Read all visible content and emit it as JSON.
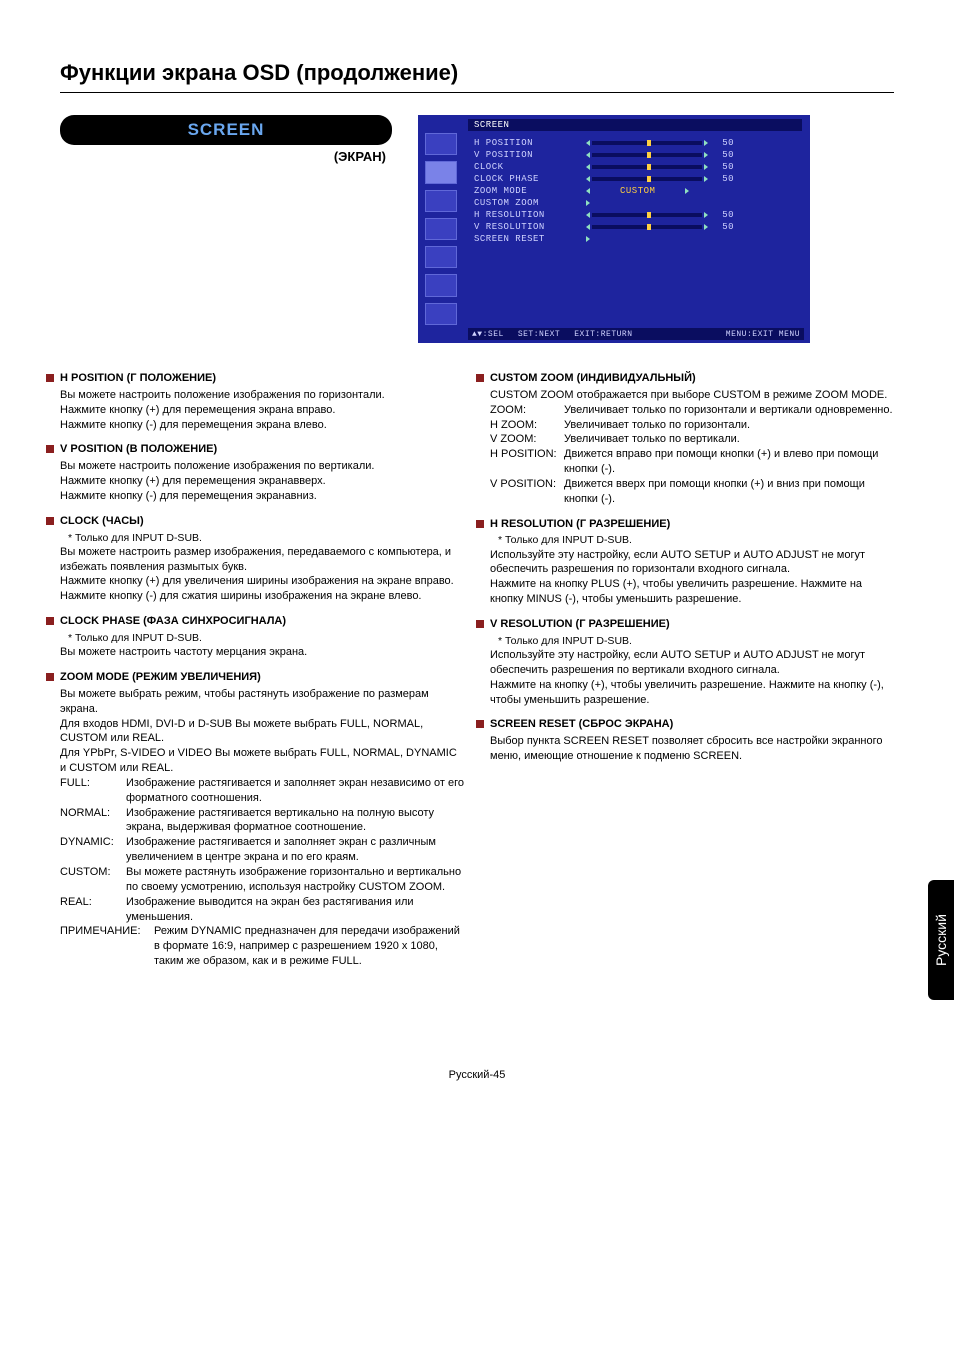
{
  "page": {
    "title": "Функции экрана OSD (продолжение)",
    "footer": "Русский-45",
    "side_tab": "Русский"
  },
  "header": {
    "pill": "SCREEN",
    "sub": "(ЭКРАН)"
  },
  "osd": {
    "title": "SCREEN",
    "items": [
      {
        "label": "H POSITION",
        "type": "slider",
        "value": "50"
      },
      {
        "label": "V POSITION",
        "type": "slider",
        "value": "50"
      },
      {
        "label": "CLOCK",
        "type": "slider",
        "value": "50"
      },
      {
        "label": "CLOCK PHASE",
        "type": "slider",
        "value": "50"
      },
      {
        "label": "ZOOM MODE",
        "type": "text",
        "text": "CUSTOM"
      },
      {
        "label": "CUSTOM ZOOM",
        "type": "arrow"
      },
      {
        "label": "H RESOLUTION",
        "type": "slider",
        "value": "50"
      },
      {
        "label": "V RESOLUTION",
        "type": "slider",
        "value": "50"
      },
      {
        "label": "SCREEN RESET",
        "type": "arrow"
      }
    ],
    "footer": {
      "sel": "▲▼:SEL",
      "next": "SET:NEXT",
      "return": "EXIT:RETURN",
      "exitmenu": "MENU:EXIT MENU"
    },
    "colors": {
      "bg": "#1e249e",
      "bar": "#0a0d60",
      "text": "#cfd2ff",
      "accent": "#ffd040",
      "tri": "#8fe0c0"
    }
  },
  "left": {
    "hpos": {
      "title": "H POSITION (Г ПОЛОЖЕНИЕ)",
      "p1": "Вы можете настроить положение изображения по горизонтали.",
      "p2": "Нажмите кнопку (+) для перемещения экрана вправо.",
      "p3": "Нажмите кнопку (-) для перемещения экрана влево."
    },
    "vpos": {
      "title": "V POSITION (В ПОЛОЖЕНИЕ)",
      "p1": "Вы можете настроить положение изображения по вертикали.",
      "p2": "Нажмите кнопку (+) для перемещения экранавверх.",
      "p3": "Нажмите кнопку (-) для перемещения экранавниз."
    },
    "clock": {
      "title": "CLOCK (ЧАСЫ)",
      "note": "* Только для INPUT D-SUB.",
      "p1": "Вы можете настроить размер изображения, передаваемого с компьютера, и избежать появления размытых букв.",
      "p2": "Нажмите кнопку (+) для увеличения ширины изображения на экране вправо. Нажмите кнопку (-) для сжатия ширины изображения на экране влево."
    },
    "phase": {
      "title": "CLOCK PHASE (ФАЗА СИНХРОСИГНАЛА)",
      "note": "* Только для INPUT D-SUB.",
      "p1": "Вы можете настроить частоту мерцания экрана."
    },
    "zoom": {
      "title": "ZOOM MODE (РЕЖИМ УВЕЛИЧЕНИЯ)",
      "p1": "Вы можете выбрать режим, чтобы растянуть изображение по размерам экрана.",
      "p2": "Для входов HDMI, DVI-D и D-SUB Вы можете выбрать FULL, NORMAL, CUSTOM или REAL.",
      "p3": "Для YPbPr, S-VIDEO и VIDEO Вы можете выбрать FULL, NORMAL, DYNAMIC и CUSTOM или REAL.",
      "defs": [
        {
          "k": "FULL:",
          "v": "Изображение растягивается и заполняет экран независимо от его форматного соотношения."
        },
        {
          "k": "NORMAL:",
          "v": "Изображение растягивается вертикально на полную высоту экрана, выдерживая форматное соотношение."
        },
        {
          "k": "DYNAMIC:",
          "v": "Изображение растягивается и заполняет экран с различным увеличением в центре экрана и по его краям."
        },
        {
          "k": "CUSTOM:",
          "v": "Вы можете растянуть изображение горизонтально и вертикально по своему усмотрению, используя настройку CUSTOM ZOOM."
        },
        {
          "k": "REAL:",
          "v": "Изображение выводится на экран без растягивания или уменьшения."
        }
      ],
      "note2_k": "ПРИМЕЧАНИЕ:",
      "note2_v": "Режим DYNAMIC предназначен для передачи изображений в формате 16:9, например с разрешением 1920 x 1080, таким же образом, как и в режиме FULL."
    }
  },
  "right": {
    "czoom": {
      "title": "CUSTOM ZOOM (ИНДИВИДУАЛЬНЫЙ)",
      "p1": "CUSTOM ZOOM отображается при выборе CUSTOM в режиме ZOOM MODE.",
      "defs": [
        {
          "k": "ZOOM:",
          "v": "Увеличивает только по горизонтали и вертикали одновременно."
        },
        {
          "k": "H ZOOM:",
          "v": "Увеличивает только по горизонтали."
        },
        {
          "k": "V ZOOM:",
          "v": "Увеличивает только по вертикали."
        },
        {
          "k": "H POSITION:",
          "v": "Движется вправо при помощи кнопки (+) и влево при помощи кнопки (-)."
        },
        {
          "k": "V POSITION:",
          "v": "Движется вверх при помощи кнопки (+) и вниз при помощи кнопки (-)."
        }
      ]
    },
    "hres": {
      "title": "H RESOLUTION (Г РАЗРЕШЕНИЕ)",
      "note": "* Только для INPUT D-SUB.",
      "p1": "Используйте эту настройку, если AUTO SETUP и AUTO ADJUST не могут обеспечить разрешения по горизонтали входного сигнала.",
      "p2": "Нажмите на кнопку PLUS (+), чтобы увеличить разрешение. Нажмите на кнопку MINUS (-), чтобы уменьшить разрешение."
    },
    "vres": {
      "title": "V RESOLUTION (Г РАЗРЕШЕНИЕ)",
      "note": "* Только для INPUT D-SUB.",
      "p1": "Используйте эту настройку, если AUTO SETUP и AUTO ADJUST не могут обеспечить разрешения по вертикали входного сигнала.",
      "p2": "Нажмите на кнопку (+), чтобы увеличить разрешение. Нажмите на кнопку (-), чтобы уменьшить разрешение."
    },
    "reset": {
      "title": "SCREEN RESET (СБРОС ЭКРАНА)",
      "p1": "Выбор пункта SCREEN RESET позволяет сбросить все настройки экранного меню, имеющие отношение к подменю SCREEN."
    }
  }
}
